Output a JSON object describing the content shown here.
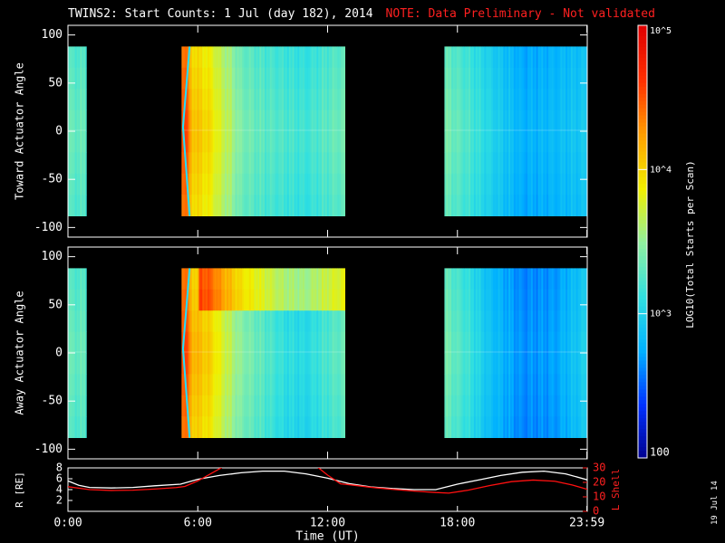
{
  "title": {
    "main": "TWINS2: Start Counts:  1 Jul (day 182), 2014",
    "note": "NOTE: Data Preliminary - Not validated"
  },
  "colorbar": {
    "label": "LOG10(Total Starts per Scan)",
    "tick_labels": [
      "10^5",
      "10^4",
      "10^3",
      "100"
    ],
    "range": [
      100,
      100000
    ],
    "colors": [
      "#00008c",
      "#0030ff",
      "#00b0ff",
      "#30e0e0",
      "#90f0a0",
      "#f0f000",
      "#ffa000",
      "#ff3000",
      "#e00000"
    ]
  },
  "chart_data": [
    {
      "type": "heatmap",
      "name": "toward",
      "ylabel": "Toward Actuator Angle",
      "ylim": [
        -110,
        110
      ],
      "yticks": [
        -100,
        -50,
        0,
        50,
        100
      ],
      "angle_range": [
        -88,
        88
      ],
      "xlim": [
        0,
        24
      ],
      "segments": [
        {
          "t0": 0.0,
          "t1": 0.85
        },
        {
          "t0": 5.25,
          "t1": 12.8
        },
        {
          "t0": 17.4,
          "t1": 24.0
        }
      ],
      "profile": [
        {
          "t": 0.0,
          "v": 0.45
        },
        {
          "t": 0.85,
          "v": 0.45
        },
        {
          "t": 5.25,
          "v": 0.85
        },
        {
          "t": 5.45,
          "v": 0.88
        },
        {
          "t": 5.7,
          "v": 0.72
        },
        {
          "t": 6.0,
          "v": 0.7
        },
        {
          "t": 6.6,
          "v": 0.66
        },
        {
          "t": 7.0,
          "v": 0.6
        },
        {
          "t": 7.5,
          "v": 0.55
        },
        {
          "t": 8.0,
          "v": 0.48
        },
        {
          "t": 9.0,
          "v": 0.44
        },
        {
          "t": 10.0,
          "v": 0.42
        },
        {
          "t": 11.0,
          "v": 0.4
        },
        {
          "t": 12.0,
          "v": 0.44
        },
        {
          "t": 12.8,
          "v": 0.47
        },
        {
          "t": 17.4,
          "v": 0.48
        },
        {
          "t": 18.5,
          "v": 0.42
        },
        {
          "t": 19.5,
          "v": 0.35
        },
        {
          "t": 21.0,
          "v": 0.26
        },
        {
          "t": 22.5,
          "v": 0.28
        },
        {
          "t": 24.0,
          "v": 0.32
        }
      ],
      "ridge": true
    },
    {
      "type": "heatmap",
      "name": "away",
      "ylabel": "Away Actuator Angle",
      "ylim": [
        -110,
        110
      ],
      "yticks": [
        -100,
        -50,
        0,
        50,
        100
      ],
      "angle_range": [
        -88,
        88
      ],
      "xlim": [
        0,
        24
      ],
      "segments": [
        {
          "t0": 0.0,
          "t1": 0.85
        },
        {
          "t0": 5.25,
          "t1": 12.8
        },
        {
          "t0": 17.4,
          "t1": 24.0
        }
      ],
      "profile": [
        {
          "t": 0.0,
          "v": 0.45
        },
        {
          "t": 0.85,
          "v": 0.45
        },
        {
          "t": 5.25,
          "v": 0.85
        },
        {
          "t": 5.45,
          "v": 0.88
        },
        {
          "t": 5.7,
          "v": 0.74
        },
        {
          "t": 6.0,
          "v": 0.72
        },
        {
          "t": 6.6,
          "v": 0.68
        },
        {
          "t": 7.0,
          "v": 0.62
        },
        {
          "t": 7.5,
          "v": 0.56
        },
        {
          "t": 8.0,
          "v": 0.5
        },
        {
          "t": 9.0,
          "v": 0.44
        },
        {
          "t": 10.0,
          "v": 0.38
        },
        {
          "t": 11.0,
          "v": 0.36
        },
        {
          "t": 12.0,
          "v": 0.42
        },
        {
          "t": 12.8,
          "v": 0.46
        },
        {
          "t": 17.4,
          "v": 0.48
        },
        {
          "t": 18.5,
          "v": 0.4
        },
        {
          "t": 19.5,
          "v": 0.3
        },
        {
          "t": 21.0,
          "v": 0.22
        },
        {
          "t": 22.5,
          "v": 0.24
        },
        {
          "t": 24.0,
          "v": 0.34
        }
      ],
      "ridge": true
    },
    {
      "type": "line",
      "name": "orbit",
      "ylabel_left": "R [RE]",
      "ylabel_right": "L Shell",
      "ylim_left": [
        0,
        8
      ],
      "yticks_left": [
        2,
        4,
        6,
        8
      ],
      "ylim_right": [
        0,
        30
      ],
      "yticks_right": [
        0,
        10,
        20,
        30
      ],
      "xlabel": "Time (UT)",
      "xlim": [
        0,
        24
      ],
      "xticks": [
        0,
        6,
        12,
        18,
        23.983
      ],
      "xtick_labels": [
        "0:00",
        "6:00",
        "12:00",
        "18:00",
        "23:59"
      ],
      "series": [
        {
          "name": "R",
          "axis": "left",
          "color": "#ffffff",
          "points": [
            [
              0,
              5.6
            ],
            [
              0.5,
              4.8
            ],
            [
              1,
              4.4
            ],
            [
              2,
              4.3
            ],
            [
              3,
              4.4
            ],
            [
              4,
              4.7
            ],
            [
              5.2,
              5.0
            ],
            [
              6,
              5.9
            ],
            [
              7,
              6.6
            ],
            [
              8,
              7.1
            ],
            [
              9,
              7.4
            ],
            [
              10,
              7.4
            ],
            [
              11,
              6.9
            ],
            [
              12,
              6.1
            ],
            [
              13,
              5.1
            ],
            [
              14,
              4.5
            ],
            [
              15,
              4.2
            ],
            [
              16,
              4.0
            ],
            [
              17,
              4.0
            ],
            [
              17.5,
              4.5
            ],
            [
              18,
              5.0
            ],
            [
              19,
              5.8
            ],
            [
              20,
              6.6
            ],
            [
              21,
              7.2
            ],
            [
              22,
              7.4
            ],
            [
              23,
              6.9
            ],
            [
              24,
              5.8
            ]
          ]
        },
        {
          "name": "L Shell",
          "axis": "right",
          "color": "#ff1010",
          "points": [
            [
              0,
              17
            ],
            [
              1,
              15
            ],
            [
              2,
              14.4
            ],
            [
              3,
              14.6
            ],
            [
              4,
              15.4
            ],
            [
              5,
              16.4
            ],
            [
              5.4,
              17.2
            ],
            [
              6,
              21
            ],
            [
              6.6,
              26
            ],
            [
              7.2,
              31
            ],
            [
              11.5,
              31
            ],
            [
              12,
              25
            ],
            [
              12.6,
              19
            ],
            [
              13,
              18.4
            ],
            [
              14,
              16.6
            ],
            [
              15,
              15.2
            ],
            [
              16,
              14.0
            ],
            [
              17,
              13.0
            ],
            [
              17.6,
              12.6
            ],
            [
              18.5,
              14.6
            ],
            [
              19.5,
              17.8
            ],
            [
              20.5,
              20.5
            ],
            [
              21.5,
              21.6
            ],
            [
              22.5,
              20.8
            ],
            [
              23.3,
              18.2
            ],
            [
              24,
              15.2
            ]
          ]
        }
      ]
    }
  ],
  "datestamp": "19 Jul 14"
}
